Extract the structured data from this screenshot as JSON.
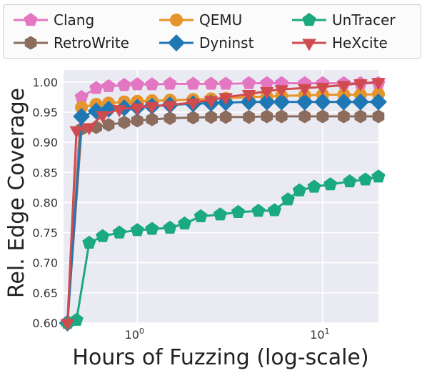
{
  "chart_data": {
    "type": "line",
    "xlabel": "Hours of Fuzzing (log-scale)",
    "ylabel": "Rel. Edge Coverage",
    "xscale": "log",
    "xlim": [
      0.4,
      20
    ],
    "ylim": [
      0.6,
      1.02
    ],
    "yticks": [
      0.6,
      0.65,
      0.7,
      0.75,
      0.8,
      0.85,
      0.9,
      0.95,
      1.0
    ],
    "ytick_labels": [
      "0.60",
      "0.65",
      "0.70",
      "0.75",
      "0.80",
      "0.85",
      "0.90",
      "0.95",
      "1.00"
    ],
    "xticks": [
      1,
      10
    ],
    "xtick_labels": [
      {
        "base": "10",
        "exp": "0"
      },
      {
        "base": "10",
        "exp": "1"
      }
    ],
    "grid": true,
    "legend_position": "top",
    "series": [
      {
        "name": "Clang",
        "color": "#e377c2",
        "marker": "pentagon",
        "x": [
          0.42,
          0.5,
          0.6,
          0.7,
          0.85,
          1.0,
          1.2,
          1.5,
          2.0,
          2.5,
          3.0,
          4.0,
          5.0,
          6.0,
          8.0,
          10.0,
          13.0,
          16.0,
          20.0
        ],
        "y": [
          0.6,
          0.975,
          0.99,
          0.993,
          0.995,
          0.996,
          0.996,
          0.997,
          0.997,
          0.997,
          0.997,
          0.998,
          0.998,
          0.998,
          0.998,
          0.998,
          0.998,
          0.998,
          0.998
        ]
      },
      {
        "name": "QEMU",
        "color": "#e5952b",
        "marker": "circle",
        "x": [
          0.42,
          0.5,
          0.6,
          0.7,
          0.85,
          1.0,
          1.2,
          1.5,
          2.0,
          2.5,
          3.0,
          4.0,
          5.0,
          6.0,
          8.0,
          10.0,
          13.0,
          16.0,
          20.0
        ],
        "y": [
          0.6,
          0.958,
          0.963,
          0.965,
          0.967,
          0.968,
          0.969,
          0.97,
          0.971,
          0.972,
          0.973,
          0.975,
          0.976,
          0.977,
          0.978,
          0.979,
          0.979,
          0.979,
          0.98
        ]
      },
      {
        "name": "UnTracer",
        "color": "#1ba97f",
        "marker": "pentagon",
        "x": [
          0.42,
          0.47,
          0.55,
          0.65,
          0.8,
          1.0,
          1.2,
          1.5,
          1.8,
          2.2,
          2.8,
          3.5,
          4.5,
          5.5,
          6.5,
          7.5,
          9.0,
          11.0,
          14.0,
          17.0,
          20.0
        ],
        "y": [
          0.6,
          0.605,
          0.733,
          0.744,
          0.75,
          0.754,
          0.756,
          0.758,
          0.765,
          0.777,
          0.78,
          0.784,
          0.786,
          0.787,
          0.805,
          0.82,
          0.826,
          0.83,
          0.835,
          0.838,
          0.843
        ]
      },
      {
        "name": "RetroWrite",
        "color": "#8c6d5d",
        "marker": "hexagon",
        "x": [
          0.42,
          0.5,
          0.6,
          0.7,
          0.85,
          1.0,
          1.2,
          1.5,
          2.0,
          2.5,
          3.0,
          4.0,
          5.0,
          6.0,
          8.0,
          10.0,
          13.0,
          16.0,
          20.0
        ],
        "y": [
          0.6,
          0.922,
          0.925,
          0.929,
          0.933,
          0.936,
          0.938,
          0.94,
          0.941,
          0.942,
          0.942,
          0.942,
          0.943,
          0.943,
          0.943,
          0.943,
          0.943,
          0.943,
          0.943
        ]
      },
      {
        "name": "Dyninst",
        "color": "#1f77b4",
        "marker": "diamond",
        "x": [
          0.42,
          0.5,
          0.6,
          0.7,
          0.85,
          1.0,
          1.2,
          1.5,
          2.0,
          2.5,
          3.0,
          4.0,
          5.0,
          6.0,
          8.0,
          10.0,
          13.0,
          16.0,
          20.0
        ],
        "y": [
          0.6,
          0.943,
          0.952,
          0.955,
          0.957,
          0.958,
          0.96,
          0.962,
          0.964,
          0.965,
          0.966,
          0.967,
          0.967,
          0.967,
          0.967,
          0.967,
          0.967,
          0.967,
          0.967
        ]
      },
      {
        "name": "HeXcite",
        "color": "#d04b4f",
        "marker": "triangle_down",
        "x": [
          0.42,
          0.47,
          0.55,
          0.65,
          0.8,
          1.0,
          1.2,
          1.5,
          2.0,
          2.5,
          3.0,
          4.0,
          5.0,
          6.0,
          8.0,
          10.0,
          13.0,
          16.0,
          20.0
        ],
        "y": [
          0.6,
          0.92,
          0.925,
          0.945,
          0.955,
          0.958,
          0.96,
          0.962,
          0.966,
          0.97,
          0.975,
          0.98,
          0.985,
          0.988,
          0.99,
          0.992,
          0.995,
          0.998,
          1.0
        ]
      }
    ],
    "legend_order": [
      "Clang",
      "QEMU",
      "UnTracer",
      "RetroWrite",
      "Dyninst",
      "HeXcite"
    ]
  }
}
